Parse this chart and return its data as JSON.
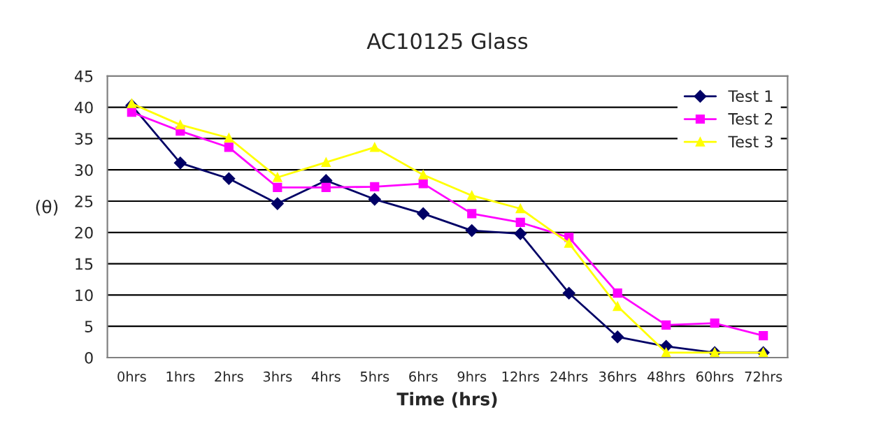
{
  "chart_data": {
    "type": "line",
    "title": "AC10125 Glass",
    "xlabel": "Time (hrs)",
    "ylabel": "(θ)",
    "categories": [
      "0hrs",
      "1hrs",
      "2hrs",
      "3hrs",
      "4hrs",
      "5hrs",
      "6hrs",
      "9hrs",
      "12hrs",
      "24hrs",
      "36hrs",
      "48hrs",
      "60hrs",
      "72hrs"
    ],
    "series": [
      {
        "name": "Test 1",
        "color": "#000066",
        "marker": "diamond",
        "values": [
          40.3,
          31.1,
          28.6,
          24.6,
          28.3,
          25.3,
          23.0,
          20.3,
          19.8,
          10.3,
          3.3,
          1.8,
          0.8,
          0.8
        ]
      },
      {
        "name": "Test 2",
        "color": "#ff00ff",
        "marker": "square",
        "values": [
          39.2,
          36.2,
          33.6,
          27.2,
          27.2,
          27.3,
          27.8,
          23.0,
          21.6,
          19.2,
          10.3,
          5.2,
          5.5,
          3.5
        ]
      },
      {
        "name": "Test 3",
        "color": "#ffff00",
        "marker": "triangle",
        "values": [
          40.6,
          37.2,
          35.1,
          28.8,
          31.2,
          33.6,
          29.2,
          25.9,
          23.8,
          18.3,
          8.2,
          0.8,
          0.8,
          0.8
        ]
      }
    ],
    "ylim": [
      0,
      45
    ],
    "yticks": [
      0,
      5,
      10,
      15,
      20,
      25,
      30,
      35,
      40,
      45
    ],
    "grid": "y",
    "legend": "top right"
  }
}
